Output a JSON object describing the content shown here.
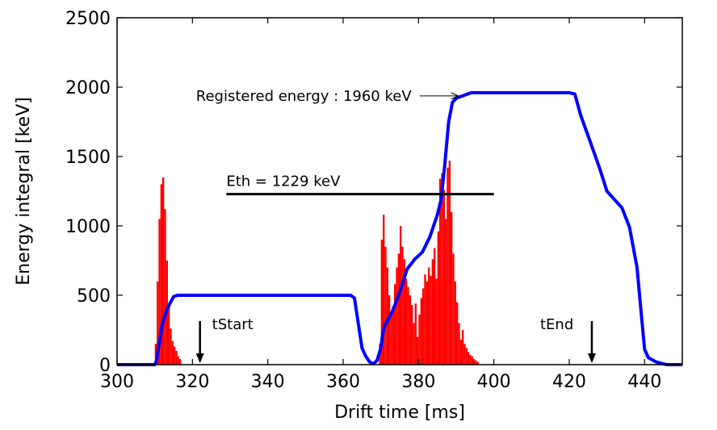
{
  "chart_data": {
    "type": "area",
    "xlabel": "Drift time [ms]",
    "ylabel": "Energy integral [keV]",
    "xlim": [
      300,
      450
    ],
    "ylim": [
      0,
      2500
    ],
    "xticks": [
      300,
      320,
      340,
      360,
      380,
      400,
      420,
      440
    ],
    "yticks": [
      0,
      500,
      1000,
      1500,
      2000,
      2500
    ],
    "grid": false,
    "series": [
      {
        "kind": "histogram",
        "color": "#ff0000",
        "bin_width": 0.5,
        "x": [
          310,
          310.5,
          311,
          311.5,
          312,
          312.5,
          313,
          313.5,
          314,
          314.5,
          315,
          315.5,
          316,
          316.5,
          369.5,
          370,
          370.5,
          371,
          371.5,
          372,
          372.5,
          373,
          373.5,
          374,
          374.5,
          375,
          375.5,
          376,
          376.5,
          377,
          377.5,
          378,
          378.5,
          379,
          379.5,
          380,
          380.5,
          381,
          381.5,
          382,
          382.5,
          383,
          383.5,
          384,
          384.5,
          385,
          385.5,
          386,
          386.5,
          387,
          387.5,
          388,
          388.5,
          389,
          389.5,
          390,
          390.5,
          391,
          391.5,
          392,
          392.5,
          393,
          393.5,
          394,
          394.5,
          395,
          395.5
        ],
        "y": [
          150,
          600,
          1050,
          1300,
          1350,
          1120,
          750,
          420,
          260,
          170,
          130,
          100,
          60,
          40,
          150,
          900,
          1080,
          850,
          700,
          500,
          380,
          420,
          580,
          700,
          800,
          1000,
          850,
          760,
          620,
          560,
          500,
          430,
          300,
          440,
          200,
          360,
          480,
          550,
          650,
          600,
          700,
          640,
          760,
          840,
          620,
          960,
          1340,
          1380,
          1260,
          1050,
          1420,
          1470,
          1100,
          800,
          600,
          450,
          300,
          180,
          250,
          150,
          120,
          90,
          70,
          60,
          40,
          30,
          20
        ]
      },
      {
        "kind": "line",
        "color": "#0000ff",
        "x": [
          300,
          309,
          310,
          310.5,
          311,
          312,
          313,
          314,
          315,
          316,
          317,
          362,
          363,
          364,
          365,
          366,
          367,
          368,
          369,
          370,
          370.5,
          371,
          372,
          373,
          375,
          377,
          379,
          381,
          383,
          385,
          386,
          387,
          388,
          389,
          390,
          391,
          392,
          394,
          396,
          398,
          400,
          410,
          420,
          421.5,
          423,
          425,
          428,
          430,
          432,
          434,
          436,
          438,
          439,
          440,
          441,
          443,
          445,
          446,
          450
        ],
        "y": [
          0,
          0,
          0,
          30,
          120,
          290,
          380,
          440,
          490,
          500,
          500,
          500,
          480,
          300,
          120,
          60,
          20,
          5,
          30,
          120,
          220,
          280,
          330,
          380,
          520,
          690,
          760,
          810,
          920,
          1080,
          1190,
          1450,
          1750,
          1890,
          1920,
          1930,
          1940,
          1960,
          1960,
          1960,
          1960,
          1960,
          1960,
          1950,
          1800,
          1650,
          1420,
          1250,
          1190,
          1130,
          990,
          700,
          400,
          110,
          50,
          20,
          5,
          0,
          0
        ]
      }
    ],
    "threshold_line": {
      "x": [
        329,
        400
      ],
      "y": 1229,
      "color": "#000000"
    },
    "annotations": {
      "eth": "Eth = 1229 keV",
      "registered": "Registered energy : 1960 keV",
      "tstart": "tStart",
      "tend": "tEnd"
    },
    "markers": {
      "tstart_x": 322,
      "tend_x": 426,
      "registered_target_x": 391,
      "registered_target_y": 1960
    }
  }
}
